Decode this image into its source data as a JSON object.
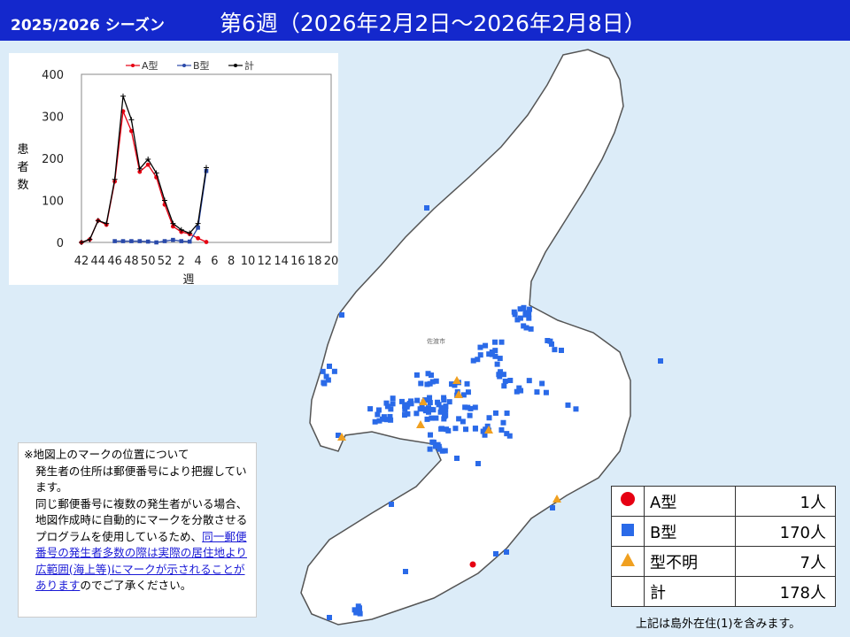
{
  "header": {
    "season": "2025/2026 シーズン",
    "week": "第6週（2026年2月2日～2026年2月8日）"
  },
  "map": {
    "city_label": "佐渡市",
    "colors": {
      "sea": "#dcecf8",
      "land": "#ffffff",
      "coast": "#555555",
      "type_a": "#e60012",
      "type_b": "#2a6ae8",
      "unknown": "#f0a020"
    }
  },
  "chart_data": {
    "type": "line",
    "legend": [
      "A型",
      "B型",
      "計"
    ],
    "ylabel": "患者数",
    "xlabel": "週",
    "ylim": [
      0,
      400
    ],
    "yticks": [
      "0",
      "100",
      "200",
      "300",
      "400"
    ],
    "xticks": [
      "42",
      "44",
      "46",
      "48",
      "50",
      "52",
      "2",
      "4",
      "6",
      "8",
      "10",
      "12",
      "14",
      "16",
      "18",
      "20"
    ],
    "series": [
      {
        "name": "A型",
        "color": "#e60012",
        "values": [
          0,
          7,
          52,
          42,
          145,
          312,
          265,
          168,
          185,
          155,
          90,
          38,
          25,
          20,
          10,
          1
        ]
      },
      {
        "name": "B型",
        "color": "#2a4aaa",
        "values": [
          null,
          null,
          null,
          null,
          3,
          3,
          3,
          3,
          2,
          0,
          3,
          6,
          3,
          2,
          35,
          170
        ]
      },
      {
        "name": "計",
        "color": "#000000",
        "values": [
          0,
          7,
          52,
          45,
          150,
          348,
          292,
          175,
          198,
          165,
          100,
          45,
          30,
          22,
          45,
          178
        ]
      }
    ]
  },
  "note": {
    "line1": "※地図上のマークの位置について",
    "para1": "発生者の住所は郵便番号により把握しています。",
    "para2_plain": "同じ郵便番号に複数の発生者がいる場合、地図作成時に自動的にマークを分散させるプログラムを使用しているため、",
    "para2_link": "同一郵便番号の発生者多数の際は実際の居住地より広範囲(海上等)にマークが示されることがあります",
    "para2_end": "のでご了承ください。"
  },
  "legend": {
    "rows": [
      {
        "label": "A型",
        "count": "1人"
      },
      {
        "label": "B型",
        "count": "170人"
      },
      {
        "label": "型不明",
        "count": "7人"
      },
      {
        "label": "計",
        "count": "178人"
      }
    ]
  },
  "footnote": "上記は島外在住(1)を含みます。"
}
